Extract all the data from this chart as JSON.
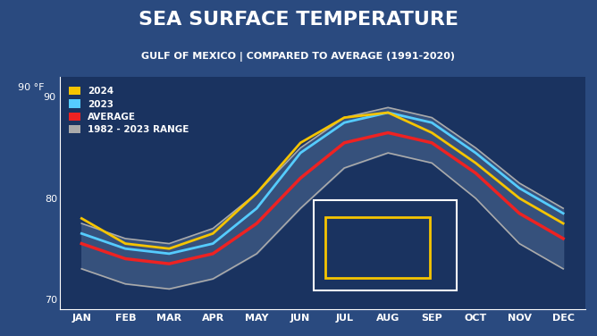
{
  "title": "SEA SURFACE TEMPERATURE",
  "subtitle": "GULF OF MEXICO | COMPARED TO AVERAGE (1991-2020)",
  "ylabel": "90 °F",
  "months": [
    "JAN",
    "FEB",
    "MAR",
    "APR",
    "MAY",
    "JUN",
    "JUL",
    "AUG",
    "SEP",
    "OCT",
    "NOV",
    "DEC"
  ],
  "ylim": [
    69,
    92
  ],
  "yticks": [
    70,
    80,
    90
  ],
  "avg": [
    75.5,
    74.0,
    73.5,
    74.5,
    77.5,
    82.0,
    85.5,
    86.5,
    85.5,
    82.5,
    78.5,
    76.0
  ],
  "y2023": [
    76.5,
    75.0,
    74.5,
    75.5,
    79.0,
    84.5,
    87.5,
    88.5,
    87.5,
    84.5,
    81.0,
    78.5
  ],
  "y2024": [
    78.0,
    75.5,
    75.0,
    76.5,
    80.5,
    85.5,
    88.0,
    88.5,
    86.5,
    83.5,
    80.0,
    77.5
  ],
  "range_upper": [
    77.5,
    76.0,
    75.5,
    77.0,
    80.5,
    85.0,
    88.0,
    89.0,
    88.0,
    85.0,
    81.5,
    79.0
  ],
  "range_lower": [
    73.0,
    71.5,
    71.0,
    72.0,
    74.5,
    79.0,
    83.0,
    84.5,
    83.5,
    80.0,
    75.5,
    73.0
  ],
  "color_2024": "#F5C400",
  "color_2023": "#55CCFF",
  "color_avg": "#EE2222",
  "color_range_fill": "#3A5580",
  "color_range_line": "#AAAAAA",
  "bg_plot": "#1A3360",
  "bg_title": "#0A1F45",
  "bg_subtitle": "#1A3360",
  "bg_outer": "#2A4A7F",
  "title_color": "#FFFFFF",
  "subtitle_color": "#FFFFFF",
  "tick_color": "#FFFFFF",
  "grid_color": "#2A4A7F"
}
